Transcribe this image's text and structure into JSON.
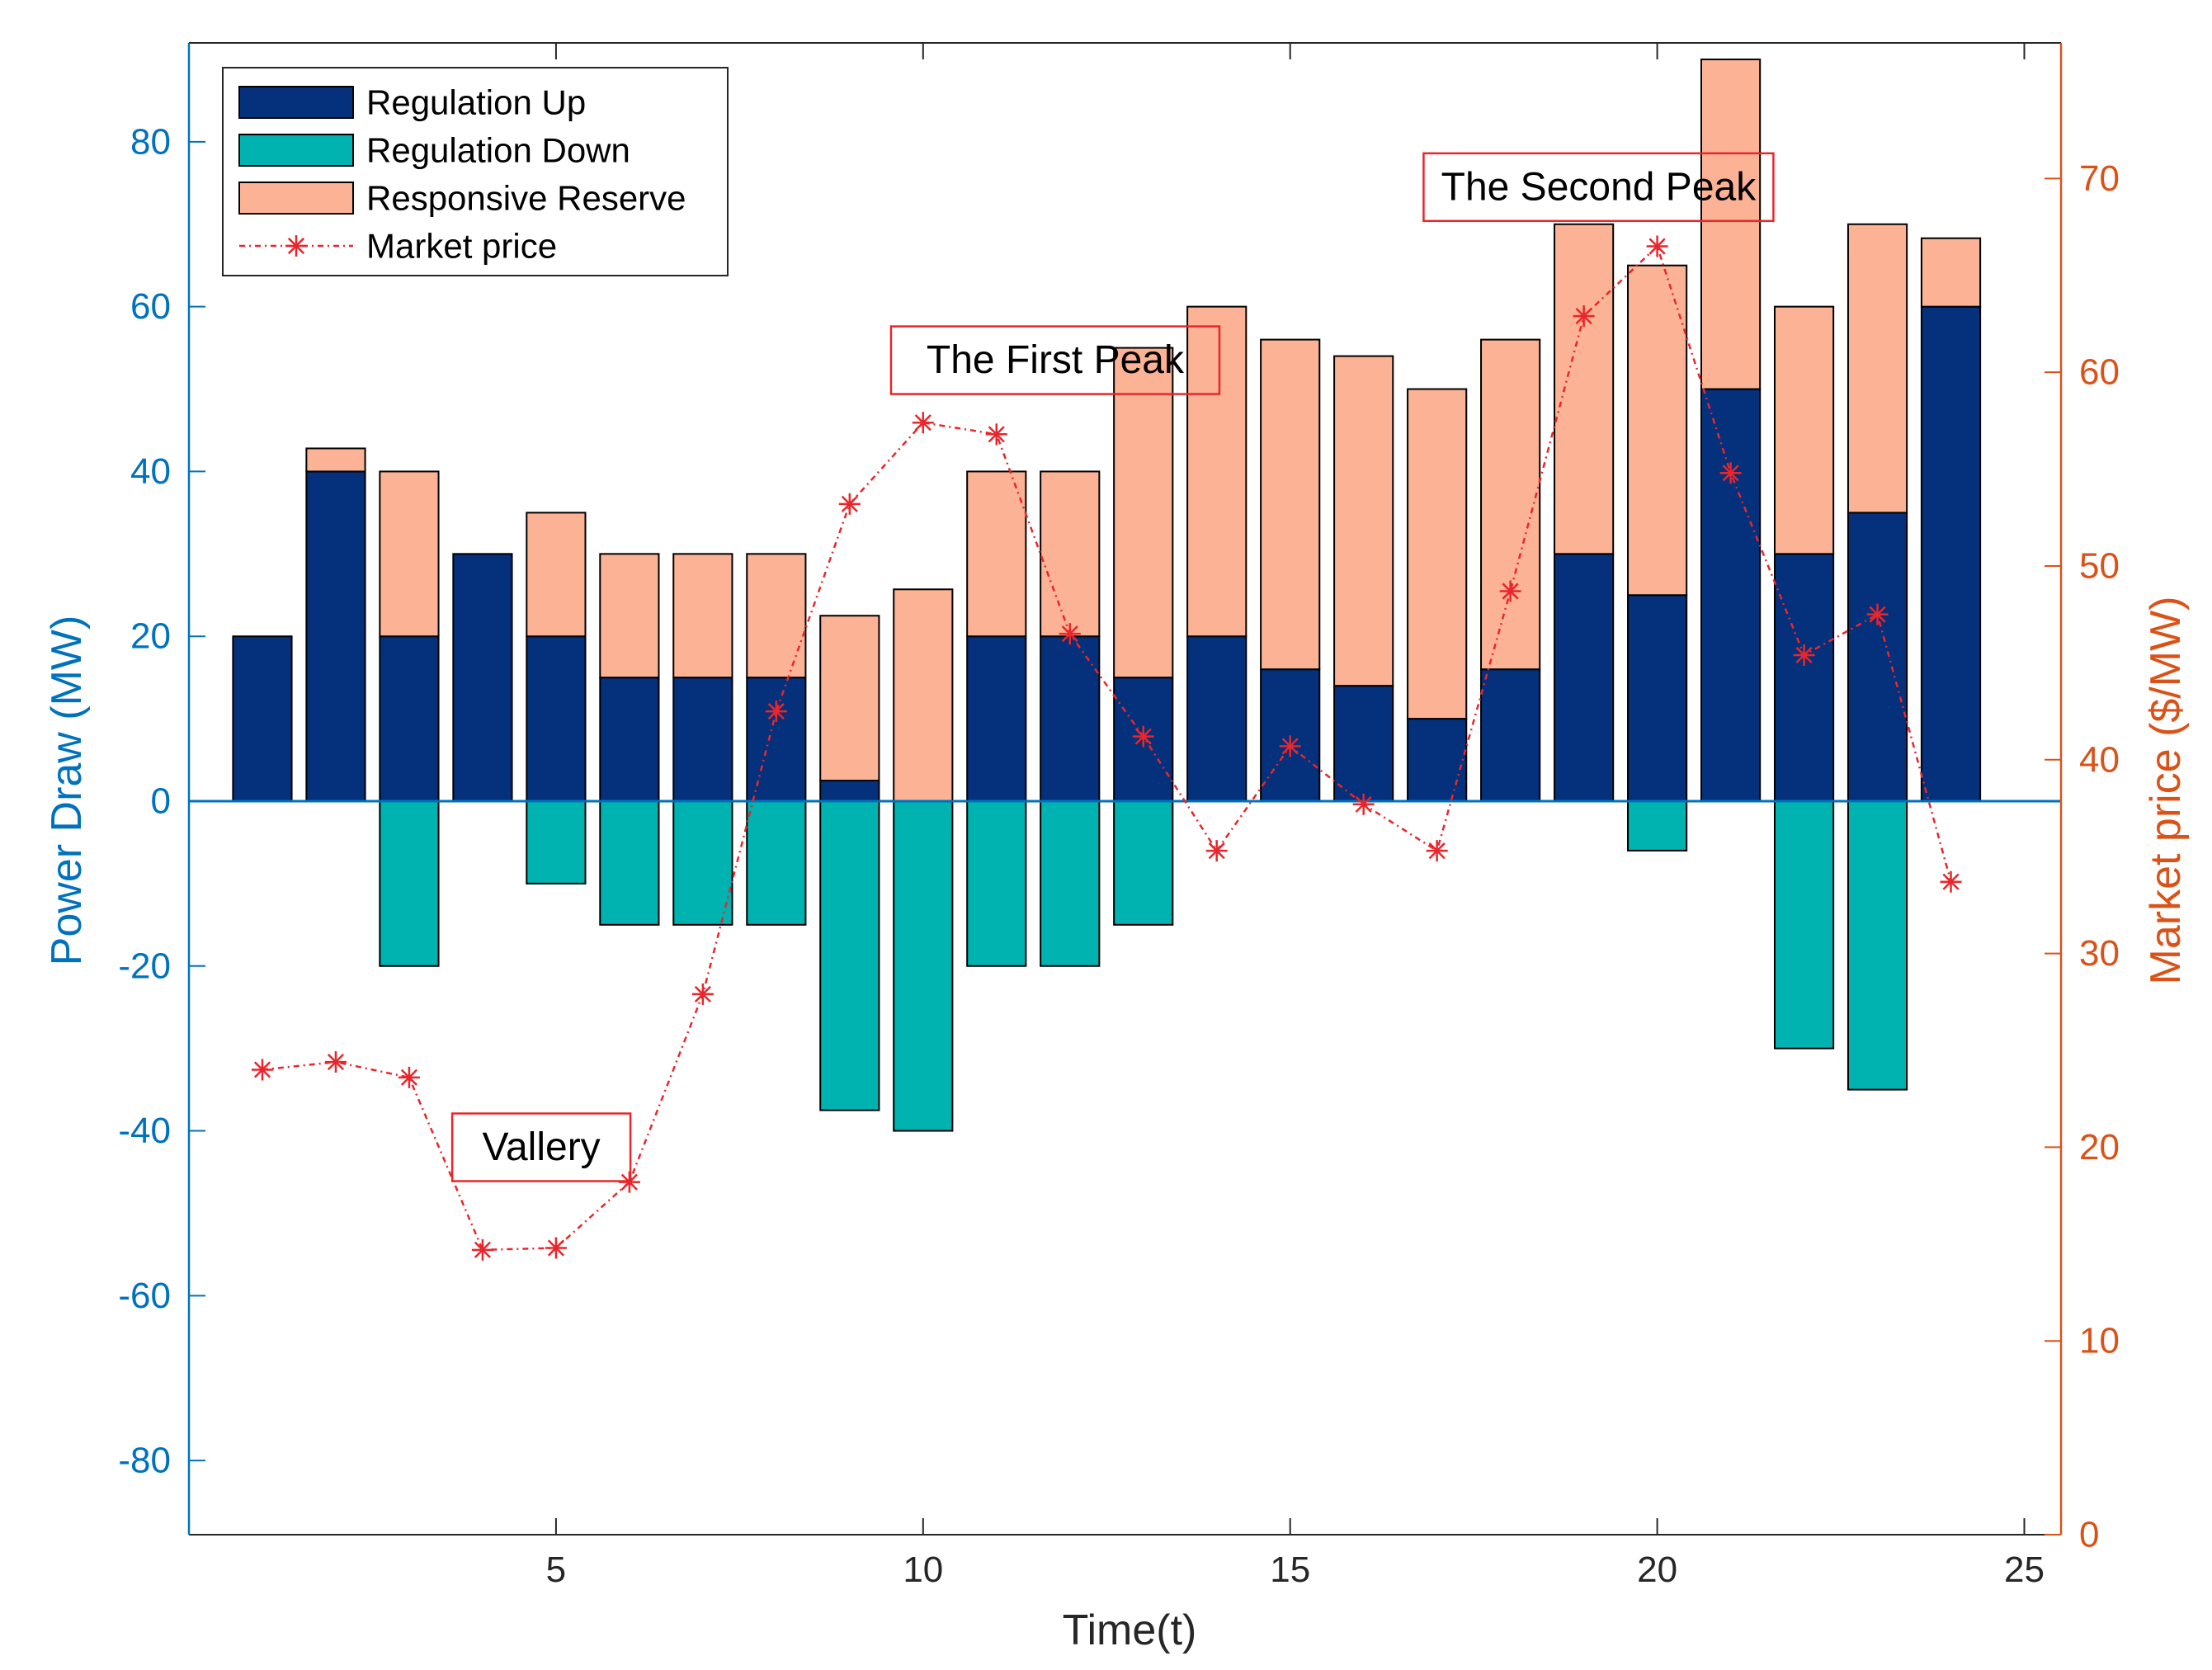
{
  "chart_data": {
    "type": "bar",
    "title": "",
    "xlabel": "Time(t)",
    "ylabel_left": "Power Draw (MW)",
    "ylabel_right": "Market price ($/MW)",
    "xlim": [
      0,
      25.5
    ],
    "ylim_left": [
      -89,
      92
    ],
    "ylim_right": [
      0,
      77
    ],
    "xticks": [
      5,
      10,
      15,
      20,
      25
    ],
    "yticks_left": [
      -80,
      -60,
      -40,
      -20,
      0,
      20,
      40,
      60,
      80
    ],
    "yticks_right": [
      0,
      10,
      20,
      30,
      40,
      50,
      60,
      70
    ],
    "x": [
      1,
      2,
      3,
      4,
      5,
      6,
      7,
      8,
      9,
      10,
      11,
      12,
      13,
      14,
      15,
      16,
      17,
      18,
      19,
      20,
      21,
      22,
      23,
      24
    ],
    "series": [
      {
        "name": "Regulation Up",
        "color": "#04307C",
        "values": [
          20,
          40,
          20,
          30,
          20,
          15,
          15,
          15,
          2.5,
          0,
          20,
          20,
          15,
          20,
          16,
          14,
          10,
          16,
          30,
          25,
          50,
          30,
          35,
          60
        ]
      },
      {
        "name": "Regulation Down",
        "color": "#00B2B0",
        "values": [
          0,
          0,
          -20,
          0,
          -10,
          -15,
          -15,
          -15,
          -37.5,
          -40,
          -20,
          -20,
          -15,
          0,
          0,
          0,
          0,
          0,
          0,
          -6,
          0,
          -30,
          -35,
          0
        ]
      },
      {
        "name": "Responsive Reserve",
        "color": "#FCB294",
        "values": [
          0,
          2.8,
          20,
          0,
          15,
          15,
          15,
          15,
          20,
          25.7,
          20,
          20,
          40,
          40,
          40,
          40,
          40,
          40,
          40,
          40,
          40,
          30,
          35,
          8.3
        ]
      },
      {
        "name": "Market price",
        "color": "#E8262B",
        "axis": "right",
        "values": [
          24,
          24.4,
          23.6,
          14.7,
          14.8,
          18.2,
          27.9,
          42.5,
          53.2,
          57.4,
          56.8,
          46.5,
          41.2,
          35.3,
          40.7,
          37.7,
          35.3,
          48.7,
          62.9,
          66.5,
          54.8,
          45.4,
          47.5,
          33.7
        ]
      }
    ],
    "legend": {
      "location": "top-left",
      "entries": [
        "Regulation Up",
        "Regulation Down",
        "Responsive Reserve",
        "Market price"
      ]
    },
    "annotations": [
      {
        "text": "Vallery",
        "x": 4.8,
        "y": -42
      },
      {
        "text": "The First Peak",
        "x": 11.8,
        "y": 53.5
      },
      {
        "text": "The Second Peak",
        "x": 19.2,
        "y": 74.5
      }
    ],
    "colors": {
      "left_axis": "#0072BD",
      "right_axis": "#D95319",
      "zero_line": "#0072BD",
      "annotation_border": "#E8262B"
    }
  }
}
